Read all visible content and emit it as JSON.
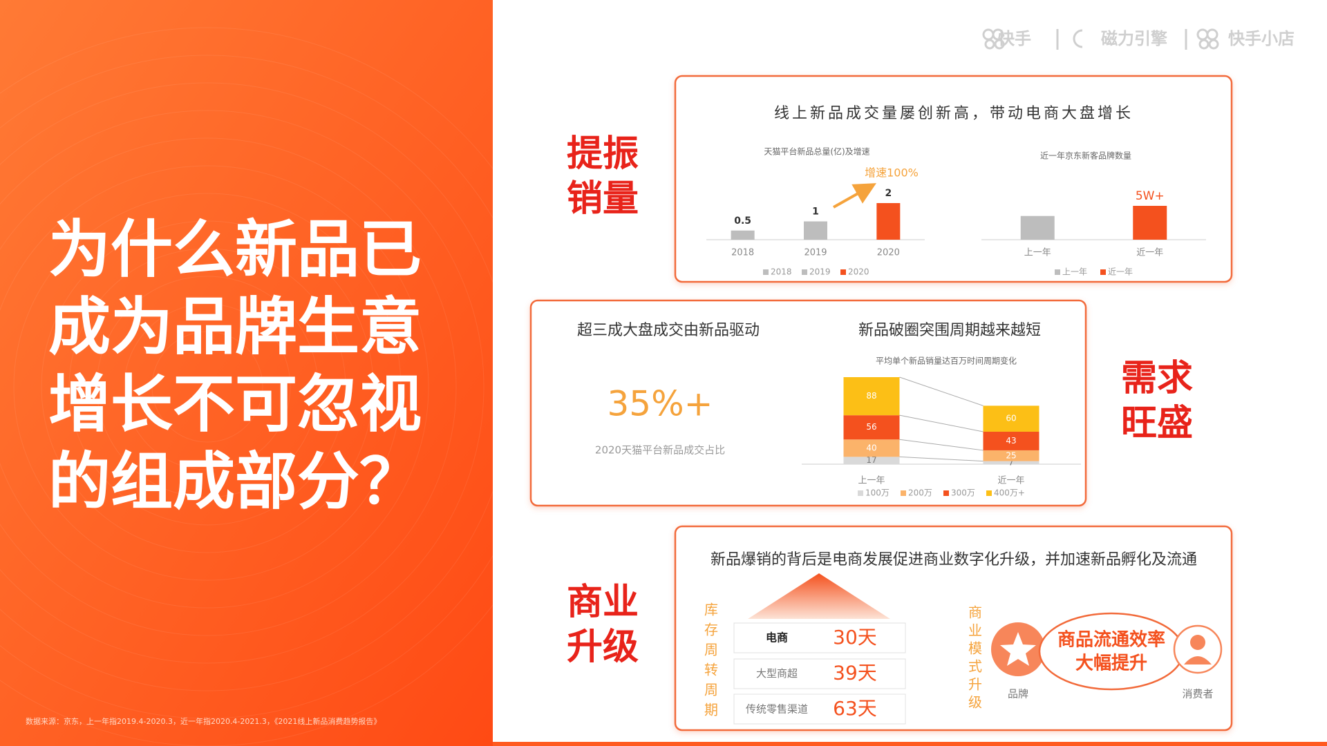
{
  "logos": [
    "快手",
    "磁力引擎",
    "快手小店"
  ],
  "title_lines": [
    "为什么新品已",
    "成为品牌生意",
    "增长不可忽视",
    "的组成部分？"
  ],
  "source": "数据来源：京东，上一年指2019.4-2020.3，近一年指2020.4-2021.3，《2021线上新品消费趋势报告》",
  "sections": [
    {
      "label": [
        "提振",
        "销量"
      ],
      "heading": "线上新品成交量屡创新高，带动电商大盘增长"
    },
    {
      "label": [
        "需求",
        "旺盛"
      ],
      "stat_heading": "超三成大盘成交由新品驱动",
      "stat_value": "35%+",
      "stat_caption": "2020天猫平台新品成交占比",
      "chart_heading": "新品破圈突围周期越来越短"
    },
    {
      "label": [
        "商业",
        "升级"
      ],
      "heading": "新品爆销的背后是电商发展促进商业数字化升级，并加速新品孵化及流通",
      "inventory_label": "库存周转周期",
      "inventory": [
        {
          "channel": "电商",
          "days": "30天"
        },
        {
          "channel": "大型商超",
          "days": "39天"
        },
        {
          "channel": "传统零售渠道",
          "days": "63天"
        }
      ],
      "model_label": "商业模式升级",
      "model_center": [
        "商品流通效率",
        "大幅提升"
      ],
      "model_left": "品牌",
      "model_right": "消费者"
    }
  ],
  "chart_data": [
    {
      "type": "bar",
      "title": "天猫平台新品总量(亿)及增速",
      "categories": [
        "2018",
        "2019",
        "2020"
      ],
      "values": [
        0.5,
        1,
        2
      ],
      "colors": [
        "#bdbdbd",
        "#bdbdbd",
        "#f4511e"
      ],
      "annotation": "增速100%",
      "legend": true
    },
    {
      "type": "bar",
      "title": "近一年京东新客品牌数量",
      "categories": [
        "上一年",
        "近一年"
      ],
      "values": [
        35000,
        50000
      ],
      "value_labels": [
        null,
        "5W+"
      ],
      "colors": [
        "#bdbdbd",
        "#f4511e"
      ],
      "legend": true
    },
    {
      "type": "stacked_bar",
      "title": "平均单个新品销量达百万时间周期变化",
      "categories": [
        "上一年",
        "近一年"
      ],
      "series": [
        {
          "name": "100万",
          "color": "#d9d9d9",
          "values": [
            17,
            7
          ]
        },
        {
          "name": "200万",
          "color": "#fbb36a",
          "values": [
            40,
            25
          ]
        },
        {
          "name": "300万",
          "color": "#f4511e",
          "values": [
            56,
            43
          ]
        },
        {
          "name": "400万+",
          "color": "#fcbf16",
          "values": [
            88,
            60
          ]
        }
      ],
      "legend": true
    }
  ]
}
